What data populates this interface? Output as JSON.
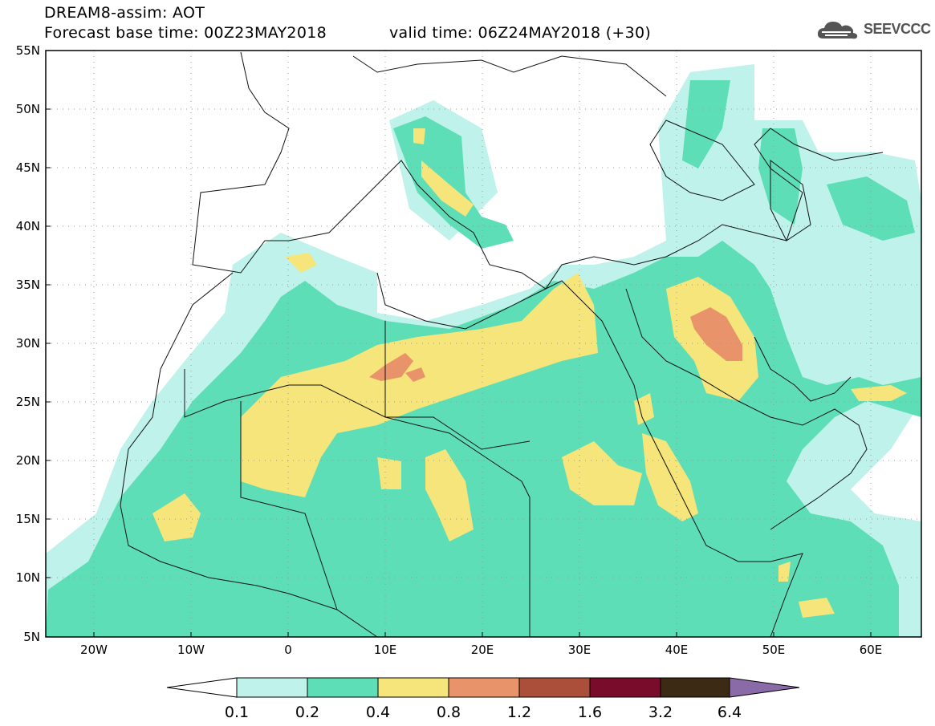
{
  "header": {
    "title": "DREAM8-assim: AOT",
    "base_time": "Forecast base time: 00Z23MAY2018",
    "valid_time": "valid time: 06Z24MAY2018 (+30)"
  },
  "logo": {
    "text": "SEEVCCC",
    "icon": "cloud-icon"
  },
  "map": {
    "lat_labels": [
      "55N",
      "50N",
      "45N",
      "40N",
      "35N",
      "30N",
      "25N",
      "20N",
      "15N",
      "10N",
      "5N"
    ],
    "lon_labels": [
      "20W",
      "10W",
      "0",
      "10E",
      "20E",
      "30E",
      "40E",
      "50E",
      "60E"
    ],
    "lat_range": [
      5,
      55
    ],
    "lon_range": [
      -25,
      65
    ],
    "gridlines": "dotted"
  },
  "legend": {
    "labels": [
      "0.1",
      "0.2",
      "0.4",
      "0.8",
      "1.2",
      "1.6",
      "3.2",
      "6.4"
    ],
    "colors": [
      "#ffffff",
      "#bff2ea",
      "#5ddeb7",
      "#f5e57a",
      "#e8936a",
      "#ab4f3a",
      "#7a0c2b",
      "#3c2a14",
      "#8b6aa8"
    ]
  }
}
